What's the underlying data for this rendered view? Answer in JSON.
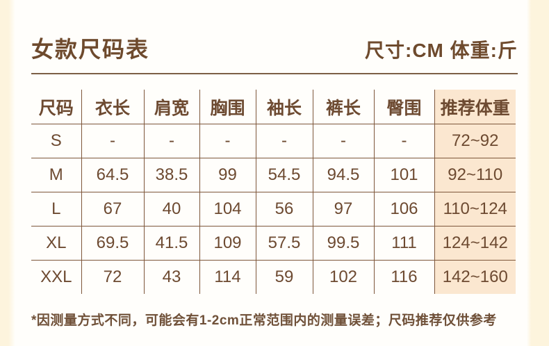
{
  "page": {
    "title": "女款尺码表",
    "units_note": "尺寸:CM 体重:斤",
    "footnote": "*因测量方式不同，可能会有1-2cm正常范围内的测量误差；尺码推荐仅供参考"
  },
  "chart_data": {
    "type": "table",
    "title": "女款尺码表",
    "columns": [
      "尺码",
      "衣长",
      "肩宽",
      "胸围",
      "袖长",
      "裤长",
      "臀围",
      "推荐体重"
    ],
    "rows": [
      [
        "S",
        "-",
        "-",
        "-",
        "-",
        "-",
        "-",
        "72~92"
      ],
      [
        "M",
        "64.5",
        "38.5",
        "99",
        "54.5",
        "94.5",
        "101",
        "92~110"
      ],
      [
        "L",
        "67",
        "40",
        "104",
        "56",
        "97",
        "106",
        "110~124"
      ],
      [
        "XL",
        "69.5",
        "41.5",
        "109",
        "57.5",
        "99.5",
        "111",
        "124~142"
      ],
      [
        "XXL",
        "72",
        "43",
        "114",
        "59",
        "102",
        "116",
        "142~160"
      ]
    ],
    "highlighted_column": "推荐体重",
    "units": {
      "dimensions": "CM",
      "weight": "斤"
    }
  },
  "colors": {
    "text_brown": "#6e4a2d",
    "grid_line": "#7d563a",
    "highlight_bg": "#fbe7d0",
    "edge_cream": "#fdf4dd",
    "page_bg": "#fffefb"
  }
}
